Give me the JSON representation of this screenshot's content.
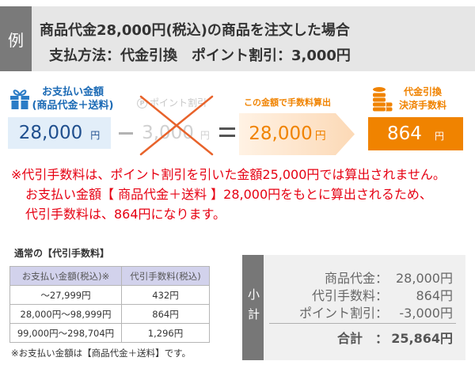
{
  "header": {
    "example_label": "例",
    "line1": "商品代金28,000円(税込)の商品を注文した場合",
    "line2": "支払方法：代金引換　ポイント割引：3,000円"
  },
  "calculation": {
    "payment": {
      "icon": "gift-icon",
      "label_line1": "お支払い金額",
      "label_line2": "(商品代金＋送料)",
      "amount": "28,000",
      "unit": "円"
    },
    "minus_icon": "minus-icon",
    "point_discount": {
      "icon": "point-icon",
      "icon_letter": "P",
      "label": "ポイント割引",
      "amount": "3,000",
      "unit": "円",
      "crossed_out": true
    },
    "equals_icon": "equals-icon",
    "fee_base": {
      "label": "この金額で手数料算出",
      "amount": "28,000",
      "unit": "円"
    },
    "cod_fee": {
      "icon": "coins-icon",
      "label_line1": "代金引換",
      "label_line2": "決済手数料",
      "amount": "864",
      "unit": "円"
    }
  },
  "notes": [
    "※代引手数料は、ポイント割引を引いた金額25,000円では算出されません。",
    "お支払い金額【 商品代金＋送料 】28,000円をもとに算出されるため、",
    "代引手数料は、864円になります。"
  ],
  "fee_table": {
    "title": "通常の【代引手数料】",
    "headers": [
      "お支払い金額(税込)※",
      "代引手数料(税込)"
    ],
    "rows": [
      [
        "～27,999円",
        "432円"
      ],
      [
        "28,000円～98,999円",
        "864円"
      ],
      [
        "99,000円～298,704円",
        "1,296円"
      ]
    ],
    "footnote": "※お支払い金額は【商品代金＋送料】です。"
  },
  "subtotal": {
    "label": "小計",
    "rows": [
      {
        "label": "商品代金：",
        "value": "28,000円"
      },
      {
        "label": "代引手数料：",
        "value": "864円"
      },
      {
        "label": "ポイント割引：",
        "value": "-3,000円"
      }
    ],
    "total": {
      "label": "合計　：",
      "value": "25,864円"
    }
  },
  "colors": {
    "header_bg": "#e6e6e6",
    "label_bg": "#777777",
    "accent_blue": "#1b6ab5",
    "payment_box_bg": "#e2eef9",
    "accent_orange": "#f08300",
    "cross_out": "#e8632b",
    "note_red": "#e60012",
    "table_header_bg": "#d2d2ec",
    "subtotal_bg": "#f0f0f0"
  }
}
